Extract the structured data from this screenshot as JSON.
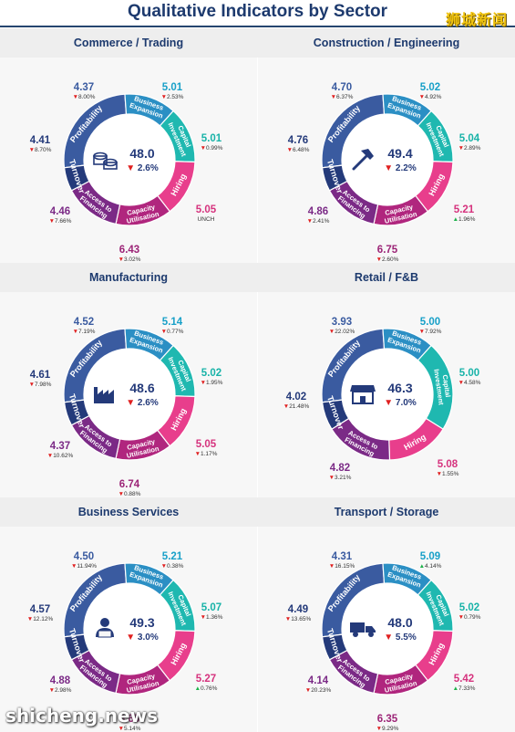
{
  "title": "Qualitative Indicators by Sector",
  "watermarks": {
    "top": "狮城新闻",
    "bottom": "shicheng.news"
  },
  "colors": {
    "profitability": "#3a5ba0",
    "business_expansion": "#2b8fc4",
    "capital_investment": "#1fb8b0",
    "hiring": "#e83e8c",
    "capacity_utilisation": "#b0267e",
    "access_to_financing": "#7b2a86",
    "turnover": "#243a7a",
    "decline": "#e02020",
    "increase": "#1db24a",
    "teal_value": "#18b3a8",
    "title": "#1d3a6e"
  },
  "segment_labels": {
    "profitability": "Profitability",
    "business_expansion": [
      "Business",
      "Expansion"
    ],
    "capital_investment": [
      "Capital",
      "Investment"
    ],
    "hiring": "Hiring",
    "capacity_utilisation": [
      "Capacity",
      "Utilisation"
    ],
    "access_to_financing": [
      "Access to",
      "Financing"
    ],
    "turnover": "Turnover"
  },
  "chart_data": [
    {
      "type": "donut",
      "sector": "Commerce / Trading",
      "icon": "coins-icon",
      "center": {
        "value": "48.0",
        "change": "▼ 2.6%"
      },
      "indicators": {
        "profitability": {
          "value": "4.37",
          "change": "▼8.00%"
        },
        "business_expansion": {
          "value": "5.01",
          "change": "▼2.53%"
        },
        "capital_investment": {
          "value": "5.01",
          "change": "▼0.99%"
        },
        "hiring": {
          "value": "5.05",
          "change": "UNCH"
        },
        "capacity_utilisation": {
          "value": "6.43",
          "change": "▼3.02%"
        },
        "access_to_financing": {
          "value": "4.46",
          "change": "▼7.66%"
        },
        "turnover": {
          "value": "4.41",
          "change": "▼8.70%"
        }
      }
    },
    {
      "type": "donut",
      "sector": "Construction / Engineering",
      "icon": "hammer-icon",
      "center": {
        "value": "49.4",
        "change": "▼ 2.2%"
      },
      "indicators": {
        "profitability": {
          "value": "4.70",
          "change": "▼6.37%"
        },
        "business_expansion": {
          "value": "5.02",
          "change": "▼4.92%"
        },
        "capital_investment": {
          "value": "5.04",
          "change": "▼2.89%"
        },
        "hiring": {
          "value": "5.21",
          "change": "▲1.96%"
        },
        "capacity_utilisation": {
          "value": "6.75",
          "change": "▼2.60%"
        },
        "access_to_financing": {
          "value": "4.86",
          "change": "▼2.41%"
        },
        "turnover": {
          "value": "4.76",
          "change": "▼6.48%"
        }
      }
    },
    {
      "type": "donut",
      "sector": "Manufacturing",
      "icon": "factory-icon",
      "center": {
        "value": "48.6",
        "change": "▼ 2.6%"
      },
      "indicators": {
        "profitability": {
          "value": "4.52",
          "change": "▼7.19%"
        },
        "business_expansion": {
          "value": "5.14",
          "change": "▼0.77%"
        },
        "capital_investment": {
          "value": "5.02",
          "change": "▼1.95%"
        },
        "hiring": {
          "value": "5.05",
          "change": "▼1.17%"
        },
        "capacity_utilisation": {
          "value": "6.74",
          "change": "▼0.88%"
        },
        "access_to_financing": {
          "value": "4.37",
          "change": "▼10.62%"
        },
        "turnover": {
          "value": "4.61",
          "change": "▼7.98%"
        }
      }
    },
    {
      "type": "donut",
      "sector": "Retail / F&B",
      "icon": "storefront-icon",
      "center": {
        "value": "46.3",
        "change": "▼ 7.0%"
      },
      "indicators": {
        "profitability": {
          "value": "3.93",
          "change": "▼22.02%"
        },
        "business_expansion": {
          "value": "5.00",
          "change": "▼7.92%"
        },
        "capital_investment": {
          "value": "5.00",
          "change": "▼4.58%"
        },
        "hiring": {
          "value": "5.08",
          "change": "▼1.55%"
        },
        "access_to_financing": {
          "value": "4.82",
          "change": "▼3.21%"
        },
        "turnover": {
          "value": "4.02",
          "change": "▼21.48%"
        }
      }
    },
    {
      "type": "donut",
      "sector": "Business Services",
      "icon": "worker-laptop-icon",
      "center": {
        "value": "49.3",
        "change": "▼ 3.0%"
      },
      "indicators": {
        "profitability": {
          "value": "4.50",
          "change": "▼11.94%"
        },
        "business_expansion": {
          "value": "5.21",
          "change": "▼0.38%"
        },
        "capital_investment": {
          "value": "5.07",
          "change": "▼1.36%"
        },
        "hiring": {
          "value": "5.27",
          "change": "▲0.76%"
        },
        "capacity_utilisation": {
          "value": "6.65",
          "change": "▼5.14%"
        },
        "access_to_financing": {
          "value": "4.88",
          "change": "▼2.98%"
        },
        "turnover": {
          "value": "4.57",
          "change": "▼12.12%"
        }
      }
    },
    {
      "type": "donut",
      "sector": "Transport / Storage",
      "icon": "truck-icon",
      "center": {
        "value": "48.0",
        "change": "▼ 5.5%"
      },
      "indicators": {
        "profitability": {
          "value": "4.31",
          "change": "▼16.15%"
        },
        "business_expansion": {
          "value": "5.09",
          "change": "▲4.14%"
        },
        "capital_investment": {
          "value": "5.02",
          "change": "▼0.79%"
        },
        "hiring": {
          "value": "5.42",
          "change": "▲7.33%"
        },
        "capacity_utilisation": {
          "value": "6.35",
          "change": "▼9.29%"
        },
        "access_to_financing": {
          "value": "4.14",
          "change": "▼20.23%"
        },
        "turnover": {
          "value": "4.49",
          "change": "▼13.65%"
        }
      }
    }
  ]
}
